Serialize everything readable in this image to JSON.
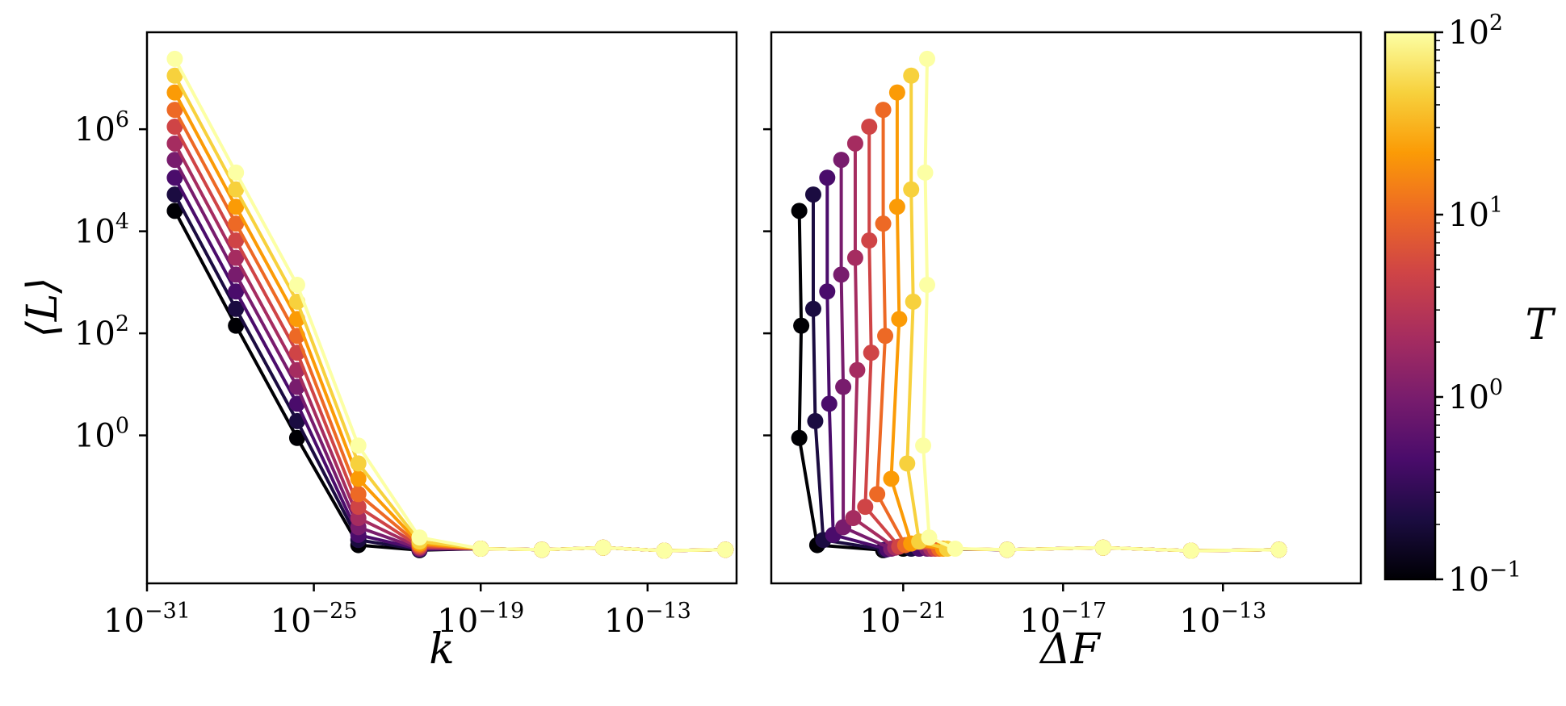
{
  "chart_data": [
    {
      "id": "left",
      "type": "line",
      "xlabel": "k",
      "ylabel": "⟨L⟩",
      "xscale": "log",
      "yscale": "log",
      "xlim_log10": [
        -31,
        -9.8
      ],
      "ylim_log10": [
        -2.9,
        7.9
      ],
      "xticks": [
        {
          "base": "10",
          "exp": "−31",
          "log10": -31
        },
        {
          "base": "10",
          "exp": "−25",
          "log10": -25
        },
        {
          "base": "10",
          "exp": "−19",
          "log10": -19
        },
        {
          "base": "10",
          "exp": "−13",
          "log10": -13
        }
      ],
      "yticks": [
        {
          "base": "10",
          "exp": "0",
          "log10": 0
        },
        {
          "base": "10",
          "exp": "2",
          "log10": 2
        },
        {
          "base": "10",
          "exp": "4",
          "log10": 4
        },
        {
          "base": "10",
          "exp": "6",
          "log10": 6
        }
      ],
      "series_note": "10 series, T log-spaced from 0.1 to 100; x values log10(k)",
      "x_log10": [
        -30,
        -27.8,
        -25.6,
        -23.4,
        -21.2,
        -19,
        -16.8,
        -14.6,
        -12.4,
        -10.2
      ],
      "series": [
        {
          "T": 0.1,
          "y_log10": [
            4.4,
            2.15,
            -0.05,
            -2.15,
            -2.25,
            -2.22,
            -2.24,
            -2.2,
            -2.26,
            -2.24
          ]
        },
        {
          "T": 0.215,
          "y_log10": [
            4.72,
            2.48,
            0.28,
            -2.05,
            -2.24,
            -2.22,
            -2.24,
            -2.2,
            -2.26,
            -2.24
          ]
        },
        {
          "T": 0.464,
          "y_log10": [
            5.05,
            2.82,
            0.62,
            -1.95,
            -2.23,
            -2.22,
            -2.24,
            -2.2,
            -2.26,
            -2.24
          ]
        },
        {
          "T": 1.0,
          "y_log10": [
            5.4,
            3.15,
            0.95,
            -1.8,
            -2.22,
            -2.22,
            -2.24,
            -2.2,
            -2.26,
            -2.24
          ]
        },
        {
          "T": 2.15,
          "y_log10": [
            5.72,
            3.48,
            1.28,
            -1.62,
            -2.2,
            -2.22,
            -2.24,
            -2.2,
            -2.26,
            -2.24
          ]
        },
        {
          "T": 4.64,
          "y_log10": [
            6.05,
            3.82,
            1.62,
            -1.4,
            -2.18,
            -2.22,
            -2.24,
            -2.2,
            -2.26,
            -2.24
          ]
        },
        {
          "T": 10.0,
          "y_log10": [
            6.38,
            4.15,
            1.95,
            -1.15,
            -2.15,
            -2.22,
            -2.24,
            -2.2,
            -2.26,
            -2.24
          ]
        },
        {
          "T": 21.5,
          "y_log10": [
            6.72,
            4.48,
            2.28,
            -0.85,
            -2.12,
            -2.22,
            -2.24,
            -2.2,
            -2.26,
            -2.24
          ]
        },
        {
          "T": 46.4,
          "y_log10": [
            7.05,
            4.82,
            2.62,
            -0.55,
            -2.08,
            -2.22,
            -2.24,
            -2.2,
            -2.26,
            -2.24
          ]
        },
        {
          "T": 100.0,
          "y_log10": [
            7.38,
            5.15,
            2.95,
            -0.2,
            -2.0,
            -2.22,
            -2.24,
            -2.2,
            -2.26,
            -2.24
          ]
        }
      ]
    },
    {
      "id": "right",
      "type": "line",
      "xlabel": "ΔF",
      "xscale": "log",
      "yscale": "log",
      "xlim_log10": [
        -24.3,
        -9.55
      ],
      "ylim_log10": [
        -2.9,
        7.9
      ],
      "xticks": [
        {
          "base": "10",
          "exp": "−21",
          "log10": -21
        },
        {
          "base": "10",
          "exp": "−17",
          "log10": -17
        },
        {
          "base": "10",
          "exp": "−13",
          "log10": -13
        }
      ],
      "yticks_log10": [
        0,
        2,
        4,
        6
      ],
      "series_note": "same 10 series as left; x values log10(ΔF)",
      "series": [
        {
          "T": 0.1,
          "x_log10": [
            -23.6,
            -23.55,
            -23.6,
            -23.15,
            -21.5,
            -21.0,
            -18.4,
            -16.0,
            -13.8,
            -11.6
          ],
          "y_log10": [
            4.4,
            2.15,
            -0.05,
            -2.15,
            -2.25,
            -2.22,
            -2.24,
            -2.2,
            -2.26,
            -2.24
          ]
        },
        {
          "T": 0.215,
          "x_log10": [
            -23.25,
            -23.25,
            -23.2,
            -23.0,
            -21.45,
            -20.8,
            -18.4,
            -16.0,
            -13.8,
            -11.6
          ],
          "y_log10": [
            4.72,
            2.48,
            0.28,
            -2.05,
            -2.24,
            -2.22,
            -2.24,
            -2.2,
            -2.26,
            -2.24
          ]
        },
        {
          "T": 0.464,
          "x_log10": [
            -22.9,
            -22.9,
            -22.85,
            -22.75,
            -21.4,
            -20.6,
            -18.4,
            -16.0,
            -13.8,
            -11.6
          ],
          "y_log10": [
            5.05,
            2.82,
            0.62,
            -1.95,
            -2.23,
            -2.22,
            -2.24,
            -2.2,
            -2.26,
            -2.24
          ]
        },
        {
          "T": 1.0,
          "x_log10": [
            -22.55,
            -22.55,
            -22.5,
            -22.5,
            -21.3,
            -20.4,
            -18.4,
            -16.0,
            -13.8,
            -11.6
          ],
          "y_log10": [
            5.4,
            3.15,
            0.95,
            -1.8,
            -2.22,
            -2.22,
            -2.24,
            -2.2,
            -2.26,
            -2.24
          ]
        },
        {
          "T": 2.15,
          "x_log10": [
            -22.2,
            -22.2,
            -22.15,
            -22.25,
            -21.2,
            -20.3,
            -18.4,
            -16.0,
            -13.8,
            -11.6
          ],
          "y_log10": [
            5.72,
            3.48,
            1.28,
            -1.62,
            -2.2,
            -2.22,
            -2.24,
            -2.2,
            -2.26,
            -2.24
          ]
        },
        {
          "T": 4.64,
          "x_log10": [
            -21.85,
            -21.85,
            -21.8,
            -21.95,
            -21.1,
            -20.2,
            -18.4,
            -16.0,
            -13.8,
            -11.6
          ],
          "y_log10": [
            6.05,
            3.82,
            1.62,
            -1.4,
            -2.18,
            -2.22,
            -2.24,
            -2.2,
            -2.26,
            -2.24
          ]
        },
        {
          "T": 10.0,
          "x_log10": [
            -21.5,
            -21.5,
            -21.45,
            -21.65,
            -20.95,
            -20.1,
            -18.4,
            -16.0,
            -13.8,
            -11.6
          ],
          "y_log10": [
            6.38,
            4.15,
            1.95,
            -1.15,
            -2.15,
            -2.22,
            -2.24,
            -2.2,
            -2.26,
            -2.24
          ]
        },
        {
          "T": 21.5,
          "x_log10": [
            -21.15,
            -21.15,
            -21.1,
            -21.3,
            -20.8,
            -20.0,
            -18.4,
            -16.0,
            -13.8,
            -11.6
          ],
          "y_log10": [
            6.72,
            4.48,
            2.28,
            -0.85,
            -2.12,
            -2.22,
            -2.24,
            -2.2,
            -2.26,
            -2.24
          ]
        },
        {
          "T": 46.4,
          "x_log10": [
            -20.8,
            -20.8,
            -20.75,
            -20.9,
            -20.6,
            -19.9,
            -18.4,
            -16.0,
            -13.8,
            -11.6
          ],
          "y_log10": [
            7.05,
            4.82,
            2.62,
            -0.55,
            -2.08,
            -2.22,
            -2.24,
            -2.2,
            -2.26,
            -2.24
          ]
        },
        {
          "T": 100.0,
          "x_log10": [
            -20.4,
            -20.45,
            -20.4,
            -20.5,
            -20.35,
            -19.7,
            -18.4,
            -16.0,
            -13.8,
            -11.6
          ],
          "y_log10": [
            7.38,
            5.15,
            2.95,
            -0.2,
            -2.0,
            -2.22,
            -2.24,
            -2.2,
            -2.26,
            -2.24
          ]
        }
      ]
    },
    {
      "id": "colorbar",
      "type": "colorbar",
      "label": "T",
      "scale": "log",
      "range": [
        0.1,
        100
      ],
      "colormap": "inferno",
      "ticks": [
        {
          "base": "10",
          "exp": "2",
          "log10": 2
        },
        {
          "base": "10",
          "exp": "1",
          "log10": 1
        },
        {
          "base": "10",
          "exp": "0",
          "log10": 0
        },
        {
          "base": "10",
          "exp": "−1",
          "log10": -1
        }
      ]
    }
  ],
  "colors": {
    "series": [
      "#000004",
      "#1b0c41",
      "#4a0c6b",
      "#781c6d",
      "#a52c60",
      "#cf4446",
      "#ed6925",
      "#fb9b06",
      "#f7d13d",
      "#fcffa4"
    ],
    "colormap_stops": [
      "#000004",
      "#1b0c41",
      "#4a0c6b",
      "#781c6d",
      "#a52c60",
      "#cf4446",
      "#ed6925",
      "#fb9b06",
      "#f7d13d",
      "#fcffa4"
    ]
  }
}
